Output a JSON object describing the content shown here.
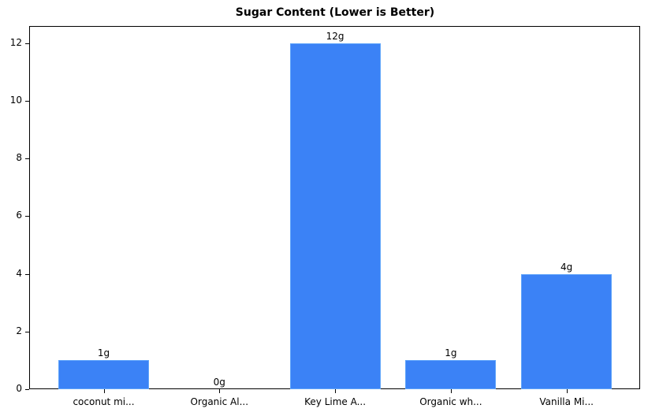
{
  "chart_data": {
    "type": "bar",
    "title": "Sugar Content (Lower is Better)",
    "xlabel": "",
    "ylabel": "",
    "categories": [
      "coconut mi...",
      "Organic Al...",
      "Key Lime A...",
      "Organic wh...",
      "Vanilla Mi..."
    ],
    "values": [
      1,
      0,
      12,
      1,
      4
    ],
    "data_labels": [
      "1g",
      "0g",
      "12g",
      "1g",
      "4g"
    ],
    "yticks": [
      0,
      2,
      4,
      6,
      8,
      10,
      12
    ],
    "ylim": [
      0,
      12.6
    ],
    "grid": false,
    "legend": null,
    "bar_color": "#3b82f6"
  }
}
